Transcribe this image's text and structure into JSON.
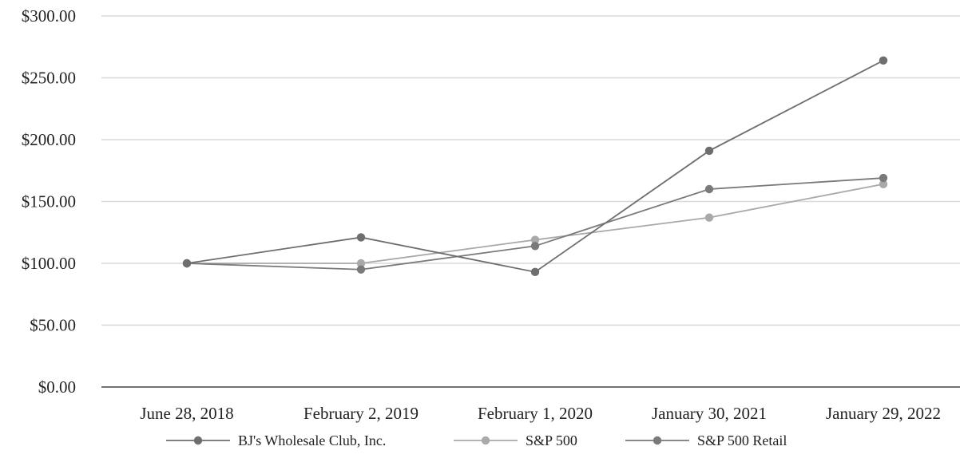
{
  "chart_data": {
    "type": "line",
    "categories": [
      "June 28, 2018",
      "February 2, 2019",
      "February 1, 2020",
      "January 30, 2021",
      "January 29, 2022"
    ],
    "y_ticks": [
      "$0.00",
      "$50.00",
      "$100.00",
      "$150.00",
      "$200.00",
      "$250.00",
      "$300.00"
    ],
    "y_tick_values": [
      0,
      50,
      100,
      150,
      200,
      250,
      300
    ],
    "ylim": [
      0,
      300
    ],
    "grid": true,
    "legend_position": "bottom",
    "series": [
      {
        "name": "BJ's Wholesale Club, Inc.",
        "values": [
          100,
          121,
          93,
          191,
          264
        ],
        "color": "#6e6e6e"
      },
      {
        "name": "S&P 500",
        "values": [
          100,
          100,
          119,
          137,
          164
        ],
        "color": "#a9a9a9"
      },
      {
        "name": "S&P 500 Retail",
        "values": [
          100,
          95,
          114,
          160,
          169
        ],
        "color": "#7a7a7a"
      }
    ]
  }
}
